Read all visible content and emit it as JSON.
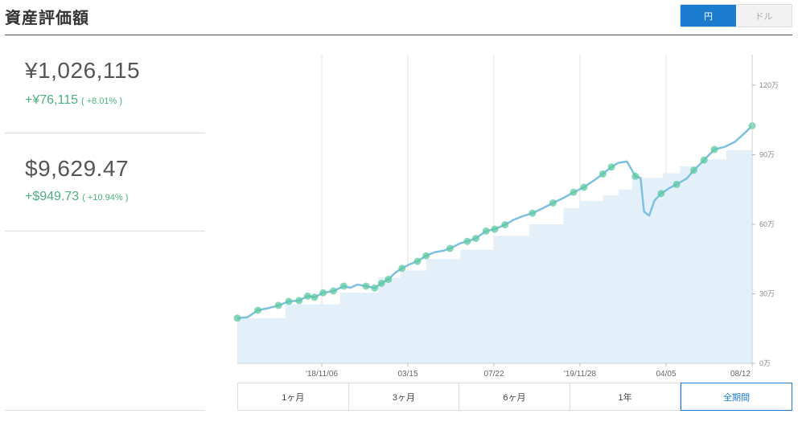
{
  "header": {
    "title": "資産評価額"
  },
  "currency_toggle": {
    "options": [
      "円",
      "ドル"
    ],
    "selected": "円"
  },
  "summary_yen": {
    "total": "¥1,026,115",
    "gain_abs": "+¥76,115",
    "gain_pct": "( +8.01% )"
  },
  "summary_usd": {
    "total": "$9,629.47",
    "gain_abs": "+$949.73",
    "gain_pct": "( +10.94% )"
  },
  "range_buttons": [
    "1ヶ月",
    "3ヶ月",
    "6ヶ月",
    "1年",
    "全期間"
  ],
  "range_selected": "全期間",
  "colors": {
    "line": "#7ec0e0",
    "area": "#e3f0fa",
    "marker": "#5cc9a0",
    "accent": "#1a7bcf",
    "gain": "#4caf7f"
  },
  "chart_data": {
    "type": "line",
    "x_ticks": [
      "'18/11/06",
      "03/15",
      "07/22",
      "'19/11/28",
      "04/05",
      "08/12"
    ],
    "y_ticks": [
      "0万",
      "30万",
      "60万",
      "90万",
      "120万"
    ],
    "y_tick_values": [
      0,
      30,
      60,
      90,
      120
    ],
    "ylim": [
      0,
      120
    ],
    "y_axis_position": "right",
    "grid": "vertical",
    "series": [
      {
        "kind": "line",
        "x": [
          0,
          6,
          12,
          18,
          24,
          30,
          36,
          41,
          45,
          50,
          56,
          62,
          66,
          70,
          75,
          80,
          84,
          88,
          92,
          96,
          100,
          105,
          110,
          115,
          120,
          124,
          130,
          134,
          139,
          145,
          150,
          156,
          161,
          166,
          172,
          178,
          184,
          190,
          196,
          202,
          208,
          213,
          218,
          222,
          227,
          232,
          235,
          237,
          240,
          243,
          247,
          252,
          256,
          262,
          266,
          272,
          278,
          284,
          290,
          296,
          300
        ],
        "y": [
          19.5,
          19.9,
          22.9,
          23.8,
          25.0,
          26.7,
          27.1,
          29.0,
          28.5,
          30.4,
          31.2,
          33.3,
          32.6,
          34.0,
          33.3,
          32.5,
          34.5,
          36.2,
          39.1,
          41.0,
          42.6,
          44.0,
          46.4,
          47.9,
          48.6,
          49.6,
          51.8,
          52.6,
          53.9,
          57.1,
          57.9,
          59.8,
          61.9,
          63.4,
          64.8,
          66.9,
          69.2,
          71.3,
          73.8,
          76.0,
          79.0,
          81.7,
          84.7,
          86.5,
          87.1,
          80.7,
          80.0,
          65.4,
          63.7,
          70.1,
          73.3,
          75.7,
          77.2,
          79.8,
          83.3,
          87.7,
          92.3,
          93.4,
          95.6,
          99.6,
          102.5
        ]
      },
      {
        "kind": "invested-area",
        "x": [
          0,
          28,
          60,
          82,
          95,
          110,
          130,
          150,
          170,
          190,
          200,
          213,
          222,
          230,
          248,
          258,
          270,
          285,
          300
        ],
        "y": [
          19.5,
          25.5,
          30.5,
          37.0,
          40.0,
          45.0,
          49.0,
          55.0,
          60.0,
          67.0,
          70.0,
          72.5,
          75.0,
          80.0,
          82.0,
          85.0,
          88.0,
          92.0,
          95.0
        ]
      },
      {
        "kind": "markers",
        "x": [
          0,
          12,
          24,
          30,
          36,
          41,
          45,
          50,
          56,
          62,
          75,
          80,
          84,
          88,
          96,
          105,
          110,
          124,
          134,
          139,
          145,
          150,
          156,
          172,
          184,
          196,
          202,
          213,
          218,
          232,
          247,
          256,
          266,
          272,
          278,
          300
        ],
        "y": [
          19.5,
          22.9,
          25.0,
          26.7,
          27.1,
          29.0,
          28.5,
          30.4,
          31.2,
          33.3,
          33.3,
          32.5,
          34.5,
          36.2,
          41.0,
          44.0,
          46.4,
          49.6,
          52.6,
          53.9,
          57.1,
          57.9,
          59.8,
          64.8,
          69.2,
          73.8,
          76.0,
          81.7,
          84.7,
          80.7,
          73.3,
          77.2,
          83.3,
          87.7,
          92.3,
          102.5
        ]
      }
    ]
  }
}
